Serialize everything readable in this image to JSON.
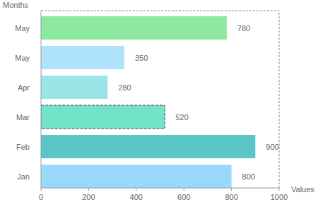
{
  "chart_data": {
    "type": "bar",
    "orientation": "horizontal",
    "categories": [
      "Jan",
      "Feb",
      "Mar",
      "Apr",
      "May",
      "May"
    ],
    "values": [
      800,
      900,
      520,
      280,
      350,
      780
    ],
    "colors": [
      "#99d9fc",
      "#5bc6c8",
      "#72e3c8",
      "#9ae5e8",
      "#afe2fc",
      "#8de9a2"
    ],
    "xlim": [
      0,
      1000
    ],
    "xticks": [
      0,
      200,
      400,
      600,
      800,
      1000
    ],
    "x_label": "Values",
    "y_label": "Months",
    "data_labels": true,
    "grid": false
  }
}
